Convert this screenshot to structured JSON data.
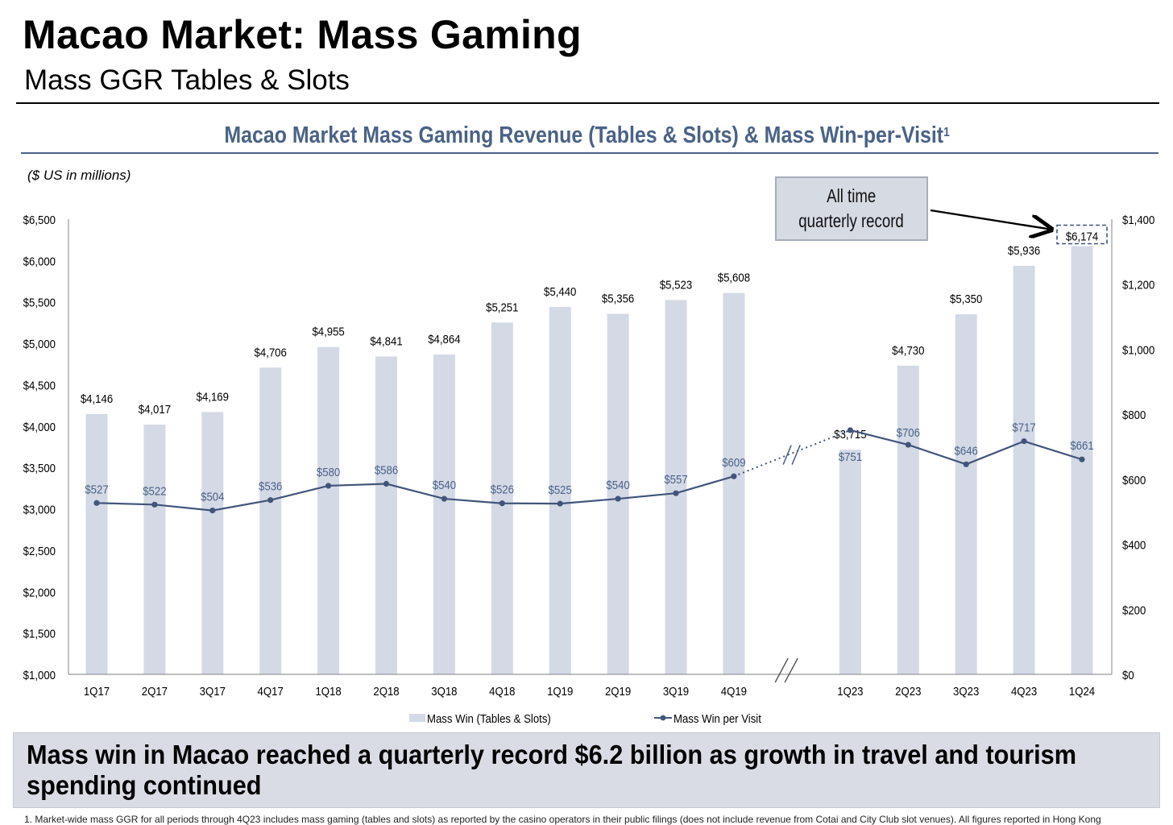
{
  "page": {
    "title": "Macao Market: Mass Gaming",
    "subtitle": "Mass GGR Tables & Slots",
    "takeaway": "Mass win in Macao reached a quarterly record $6.2 billion as growth in travel and tourism spending continued",
    "footnote": "1. Market-wide mass GGR for all periods through 4Q23 includes mass gaming (tables and slots) as reported by the casino operators in their public filings (does not include revenue from Cotai and City Club slot venues). All figures reported in Hong Kong"
  },
  "chart_data": {
    "type": "bar",
    "title": "Macao Market Mass Gaming Revenue (Tables & Slots) & Mass Win-per-Visit",
    "title_footnote_mark": "1",
    "units_note": "($ US in millions)",
    "categories": [
      "1Q17",
      "2Q17",
      "3Q17",
      "4Q17",
      "1Q18",
      "2Q18",
      "3Q18",
      "4Q18",
      "1Q19",
      "2Q19",
      "3Q19",
      "4Q19",
      "1Q23",
      "2Q23",
      "3Q23",
      "4Q23",
      "1Q24"
    ],
    "axis_break_after": "4Q19",
    "series": [
      {
        "name": "Mass Win (Tables & Slots)",
        "type": "bar",
        "axis": "left",
        "color": "#d4d9e6",
        "values": [
          4146,
          4017,
          4169,
          4706,
          4955,
          4841,
          4864,
          5251,
          5440,
          5356,
          5523,
          5608,
          3715,
          4730,
          5350,
          5936,
          6174
        ],
        "labels": [
          "$4,146",
          "$4,017",
          "$4,169",
          "$4,706",
          "$4,955",
          "$4,841",
          "$4,864",
          "$5,251",
          "$5,440",
          "$5,356",
          "$5,523",
          "$5,608",
          "$3,715",
          "$4,730",
          "$5,350",
          "$5,936",
          "$6,174"
        ]
      },
      {
        "name": "Mass Win per Visit",
        "type": "line",
        "axis": "right",
        "color": "#41557a",
        "values": [
          527,
          522,
          504,
          536,
          580,
          586,
          540,
          526,
          525,
          540,
          557,
          609,
          751,
          706,
          646,
          717,
          661
        ],
        "labels": [
          "$527",
          "$522",
          "$504",
          "$536",
          "$580",
          "$586",
          "$540",
          "$526",
          "$525",
          "$540",
          "$557",
          "$609",
          "$751",
          "$706",
          "$646",
          "$717",
          "$661"
        ]
      }
    ],
    "y_left": {
      "range": [
        1000,
        6500
      ],
      "ticks": [
        "$1,000",
        "$1,500",
        "$2,000",
        "$2,500",
        "$3,000",
        "$3,500",
        "$4,000",
        "$4,500",
        "$5,000",
        "$5,500",
        "$6,000",
        "$6,500"
      ],
      "values": [
        1000,
        1500,
        2000,
        2500,
        3000,
        3500,
        4000,
        4500,
        5000,
        5500,
        6000,
        6500
      ]
    },
    "y_right": {
      "range": [
        0,
        1400
      ],
      "ticks": [
        "$0",
        "$200",
        "$400",
        "$600",
        "$800",
        "$1,000",
        "$1,200",
        "$1,400"
      ],
      "values": [
        0,
        200,
        400,
        600,
        800,
        1000,
        1200,
        1400
      ]
    },
    "grid": false,
    "legend": "bottom-center",
    "annotation": {
      "text_line1": "All time",
      "text_line2": "quarterly record",
      "target": "1Q24"
    }
  }
}
